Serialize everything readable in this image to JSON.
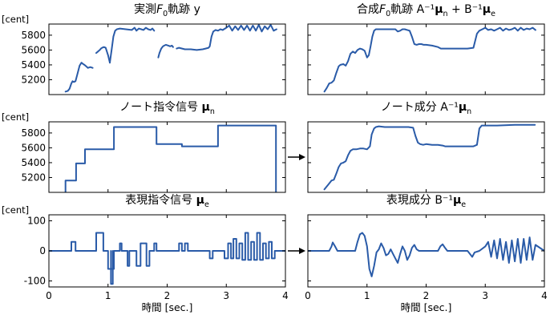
{
  "figure": {
    "xlabel": "時間 [sec.]",
    "arrow_rows": [
      1,
      2
    ]
  },
  "chart_data": [
    {
      "type": "line",
      "title": "実測F0軌跡 y",
      "unit_label": "[cent]",
      "row": 0,
      "col": 0,
      "xlim": [
        0,
        4
      ],
      "ylim": [
        5000,
        5950
      ],
      "yticks": [
        5200,
        5400,
        5600,
        5800
      ],
      "xticks": [],
      "series": [
        {
          "x": [
            0.28,
            0.32,
            0.35,
            0.38,
            0.4,
            0.42,
            0.45,
            0.48,
            0.52,
            0.55,
            0.58,
            0.6,
            0.63,
            0.66,
            0.7,
            0.74
          ],
          "y": [
            5040,
            5050,
            5080,
            5150,
            5180,
            5170,
            5180,
            5270,
            5390,
            5430,
            5410,
            5400,
            5380,
            5360,
            5370,
            5360
          ]
        },
        {
          "x": [
            0.8,
            0.83,
            0.86,
            0.88,
            0.9,
            0.93,
            0.96,
            1.0,
            1.03
          ],
          "y": [
            5560,
            5580,
            5600,
            5620,
            5630,
            5640,
            5630,
            5530,
            5430
          ]
        },
        {
          "x": [
            1.03,
            1.06,
            1.09,
            1.12,
            1.15,
            1.2,
            1.3,
            1.4,
            1.45,
            1.48,
            1.52,
            1.56,
            1.6,
            1.64,
            1.68,
            1.72,
            1.75,
            1.78
          ],
          "y": [
            5430,
            5600,
            5780,
            5860,
            5880,
            5890,
            5880,
            5870,
            5900,
            5860,
            5890,
            5880,
            5870,
            5900,
            5880,
            5870,
            5890,
            5860
          ]
        },
        {
          "x": [
            1.85,
            1.87,
            1.9,
            1.93,
            1.95,
            1.98,
            2.02,
            2.05,
            2.08,
            2.1
          ],
          "y": [
            5500,
            5560,
            5620,
            5650,
            5660,
            5670,
            5660,
            5650,
            5660,
            5640
          ]
        },
        {
          "x": [
            2.16,
            2.2,
            2.3,
            2.4,
            2.5,
            2.6,
            2.65,
            2.7,
            2.72,
            2.75,
            2.78,
            2.82,
            2.86,
            2.9,
            2.94
          ],
          "y": [
            5620,
            5630,
            5610,
            5610,
            5600,
            5610,
            5620,
            5630,
            5650,
            5780,
            5850,
            5870,
            5860,
            5880,
            5870
          ]
        },
        {
          "x": [
            2.94,
            3.0,
            3.05,
            3.1,
            3.15,
            3.2,
            3.25,
            3.3,
            3.35,
            3.4,
            3.45,
            3.5,
            3.55,
            3.6,
            3.65,
            3.7,
            3.75,
            3.8,
            3.85
          ],
          "y": [
            5870,
            5900,
            5930,
            5860,
            5920,
            5870,
            5930,
            5870,
            5930,
            5860,
            5930,
            5860,
            5940,
            5850,
            5920,
            5880,
            5940,
            5860,
            5880
          ]
        }
      ]
    },
    {
      "type": "line",
      "title": "合成F0軌跡 A⁻¹μn + B⁻¹μe",
      "unit_label": "",
      "row": 0,
      "col": 1,
      "xlim": [
        0,
        4
      ],
      "ylim": [
        5000,
        5950
      ],
      "yticks": [
        5200,
        5400,
        5600,
        5800
      ],
      "xticks": [],
      "series": [
        {
          "x": [
            0.28,
            0.32,
            0.36,
            0.4,
            0.44,
            0.48,
            0.52,
            0.55,
            0.6,
            0.64,
            0.68,
            0.72,
            0.76,
            0.8,
            0.84,
            0.88,
            0.92,
            0.96,
            1.0,
            1.03,
            1.06,
            1.09,
            1.12,
            1.15,
            1.2,
            1.3,
            1.4,
            1.48,
            1.52,
            1.56,
            1.6,
            1.64,
            1.68,
            1.72,
            1.76,
            1.8,
            1.84,
            1.88,
            1.92,
            1.96,
            2.0,
            2.1,
            2.2,
            2.25,
            2.3,
            2.4,
            2.5,
            2.6,
            2.7,
            2.8,
            2.86,
            2.9,
            2.95,
            3.0,
            3.05,
            3.1,
            3.15,
            3.2,
            3.25,
            3.3,
            3.35,
            3.4,
            3.45,
            3.5,
            3.55,
            3.6,
            3.65,
            3.7,
            3.75,
            3.8,
            3.85
          ],
          "y": [
            5040,
            5090,
            5150,
            5160,
            5190,
            5290,
            5380,
            5400,
            5410,
            5390,
            5450,
            5550,
            5580,
            5560,
            5600,
            5620,
            5610,
            5590,
            5500,
            5530,
            5650,
            5780,
            5860,
            5880,
            5880,
            5880,
            5880,
            5880,
            5850,
            5860,
            5880,
            5880,
            5870,
            5860,
            5780,
            5680,
            5670,
            5680,
            5680,
            5670,
            5670,
            5660,
            5640,
            5620,
            5620,
            5620,
            5620,
            5620,
            5620,
            5630,
            5820,
            5860,
            5880,
            5900,
            5870,
            5880,
            5860,
            5880,
            5900,
            5860,
            5890,
            5870,
            5880,
            5900,
            5860,
            5900,
            5870,
            5890,
            5880,
            5900,
            5870
          ]
        }
      ]
    },
    {
      "type": "line",
      "title": "ノート指令信号 μn",
      "unit_label": "[cent]",
      "row": 1,
      "col": 0,
      "xlim": [
        0,
        4
      ],
      "ylim": [
        5000,
        5950
      ],
      "yticks": [
        5200,
        5400,
        5600,
        5800
      ],
      "xticks": [],
      "series": [
        {
          "x": [
            0.28,
            0.28,
            0.46,
            0.46,
            0.61,
            0.61,
            0.84,
            0.84,
            1.1,
            1.1,
            1.82,
            1.82,
            2.25,
            2.25,
            2.86,
            2.86,
            3.84,
            3.84
          ],
          "y": [
            5000,
            5160,
            5160,
            5390,
            5390,
            5580,
            5580,
            5580,
            5580,
            5880,
            5880,
            5650,
            5650,
            5620,
            5620,
            5900,
            5900,
            5000
          ]
        }
      ]
    },
    {
      "type": "line",
      "title": "ノート成分 A⁻¹μn",
      "unit_label": "",
      "row": 1,
      "col": 1,
      "xlim": [
        0,
        4
      ],
      "ylim": [
        5000,
        5950
      ],
      "yticks": [
        5200,
        5400,
        5600,
        5800
      ],
      "xticks": [],
      "series": [
        {
          "x": [
            0.28,
            0.34,
            0.4,
            0.44,
            0.48,
            0.52,
            0.56,
            0.6,
            0.64,
            0.68,
            0.72,
            0.76,
            0.82,
            0.88,
            0.94,
            1.0,
            1.05,
            1.08,
            1.12,
            1.15,
            1.2,
            1.3,
            1.5,
            1.7,
            1.78,
            1.82,
            1.86,
            1.9,
            1.95,
            2.0,
            2.1,
            2.2,
            2.28,
            2.32,
            2.4,
            2.6,
            2.8,
            2.86,
            2.9,
            2.94,
            3.0,
            3.2,
            3.5,
            3.84
          ],
          "y": [
            5040,
            5100,
            5160,
            5170,
            5250,
            5340,
            5390,
            5400,
            5420,
            5500,
            5560,
            5580,
            5580,
            5590,
            5590,
            5580,
            5620,
            5780,
            5860,
            5880,
            5890,
            5880,
            5880,
            5880,
            5870,
            5760,
            5670,
            5650,
            5640,
            5650,
            5640,
            5640,
            5630,
            5620,
            5620,
            5620,
            5620,
            5640,
            5860,
            5900,
            5900,
            5900,
            5910,
            5910
          ]
        }
      ]
    },
    {
      "type": "line",
      "title": "表現指令信号 μe",
      "unit_label": "[cent]",
      "row": 2,
      "col": 0,
      "xlim": [
        0,
        4
      ],
      "ylim": [
        -120,
        120
      ],
      "yticks": [
        -100,
        0,
        100
      ],
      "xticks": [
        0,
        1,
        2,
        3,
        4
      ],
      "series": [
        {
          "x": [
            0,
            0.38,
            0.38,
            0.45,
            0.45,
            0.8,
            0.8,
            0.87,
            0.87,
            0.92,
            0.92,
            1.0,
            1.0,
            1.1,
            1.1,
            1.2,
            1.2,
            1.23,
            1.23,
            1.33,
            1.33,
            1.36,
            1.36,
            1.48,
            1.48,
            1.55,
            1.55,
            1.65,
            1.65,
            1.7,
            1.7,
            1.78,
            1.78,
            1.82,
            1.82,
            2.2,
            2.2,
            2.25,
            2.25,
            2.3,
            2.3,
            2.35,
            2.35,
            2.72,
            2.72,
            2.77,
            2.77,
            2.97,
            2.97,
            3.03,
            3.03,
            3.08,
            3.08,
            3.12,
            3.12,
            3.17,
            3.17,
            3.22,
            3.22,
            3.27,
            3.27,
            3.32,
            3.32,
            3.37,
            3.37,
            3.42,
            3.42,
            3.47,
            3.47,
            3.52,
            3.52,
            3.57,
            3.57,
            3.62,
            3.62,
            3.67,
            3.67,
            3.72,
            3.72,
            3.77,
            3.77,
            3.82,
            3.82,
            4.0
          ],
          "y": [
            0,
            0,
            30,
            30,
            0,
            0,
            60,
            60,
            60,
            60,
            0,
            0,
            -60,
            -60,
            0,
            0,
            25,
            25,
            0,
            0,
            -50,
            -50,
            0,
            0,
            -50,
            -50,
            25,
            25,
            -50,
            -50,
            0,
            0,
            25,
            25,
            0,
            0,
            25,
            25,
            0,
            0,
            25,
            25,
            0,
            0,
            -25,
            -25,
            0,
            0,
            -25,
            -25,
            25,
            25,
            -25,
            -25,
            40,
            40,
            -25,
            -25,
            25,
            25,
            -30,
            -30,
            60,
            60,
            -30,
            -30,
            30,
            30,
            -30,
            -30,
            60,
            60,
            -30,
            -30,
            25,
            25,
            -25,
            -25,
            30,
            30,
            -25,
            -25,
            0,
            0
          ]
        },
        {
          "x": [
            1.05,
            1.05,
            1.08,
            1.08
          ],
          "y": [
            0,
            -110,
            -110,
            0
          ]
        }
      ]
    },
    {
      "type": "line",
      "title": "表現成分 B⁻¹μe",
      "unit_label": "",
      "row": 2,
      "col": 1,
      "xlim": [
        0,
        4
      ],
      "ylim": [
        -120,
        120
      ],
      "yticks": [
        -100,
        0,
        100
      ],
      "xticks": [
        0,
        1,
        2,
        3,
        4
      ],
      "series": [
        {
          "x": [
            0,
            0.36,
            0.4,
            0.42,
            0.46,
            0.5,
            0.8,
            0.84,
            0.88,
            0.92,
            0.96,
            1.0,
            1.04,
            1.08,
            1.12,
            1.16,
            1.2,
            1.24,
            1.28,
            1.32,
            1.36,
            1.4,
            1.44,
            1.48,
            1.52,
            1.56,
            1.6,
            1.64,
            1.68,
            1.72,
            1.76,
            1.8,
            1.84,
            1.88,
            2.2,
            2.24,
            2.28,
            2.32,
            2.36,
            2.4,
            2.7,
            2.74,
            2.78,
            2.82,
            2.9,
            3.0,
            3.05,
            3.1,
            3.15,
            3.2,
            3.25,
            3.3,
            3.35,
            3.4,
            3.45,
            3.5,
            3.55,
            3.6,
            3.65,
            3.7,
            3.75,
            3.8,
            3.85,
            4.0
          ],
          "y": [
            0,
            0,
            15,
            28,
            15,
            0,
            0,
            30,
            55,
            60,
            50,
            15,
            -60,
            -85,
            -50,
            -5,
            5,
            25,
            10,
            -15,
            -10,
            5,
            -10,
            -25,
            -40,
            -10,
            15,
            0,
            -30,
            -15,
            10,
            20,
            5,
            0,
            0,
            15,
            22,
            10,
            0,
            0,
            0,
            -10,
            -20,
            -5,
            0,
            15,
            30,
            -20,
            35,
            -25,
            40,
            -30,
            30,
            -40,
            35,
            -35,
            40,
            -40,
            40,
            -30,
            45,
            -30,
            20,
            0
          ]
        }
      ]
    }
  ]
}
